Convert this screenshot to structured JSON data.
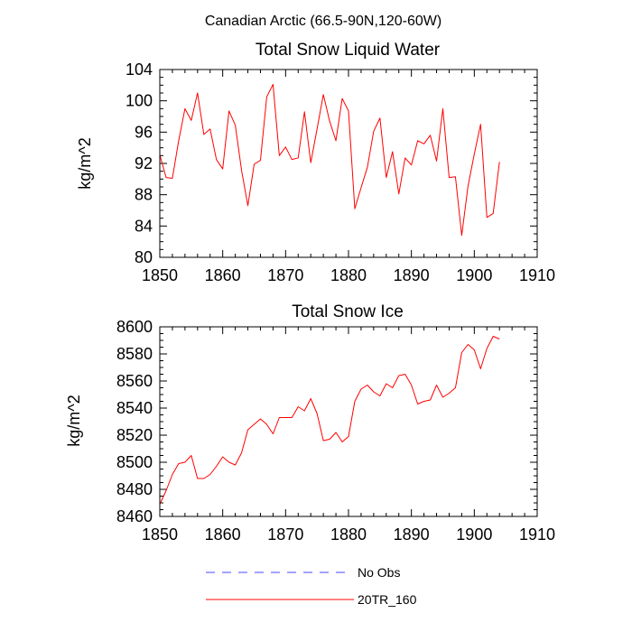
{
  "figure_title": "Canadian Arctic (66.5-90N,120-60W)",
  "legend": {
    "items": [
      {
        "label": "No Obs",
        "color": "#4a4aff",
        "dash": true
      },
      {
        "label": "20TR_160",
        "color": "#ff0000",
        "dash": false
      }
    ]
  },
  "chart_data": [
    {
      "type": "line",
      "title": "Total Snow Liquid Water",
      "xlabel": "",
      "ylabel": "kg/m^2",
      "xlim": [
        1850,
        1910
      ],
      "ylim": [
        80,
        104
      ],
      "x_ticks": [
        1850,
        1860,
        1870,
        1880,
        1890,
        1900,
        1910
      ],
      "y_ticks": [
        80,
        84,
        88,
        92,
        96,
        100,
        104
      ],
      "x_tick_labels": [
        "1850",
        "1860",
        "1870",
        "1880",
        "1890",
        "1900",
        "1910"
      ],
      "y_tick_labels": [
        "80",
        "84",
        "88",
        "92",
        "96",
        "100",
        "104"
      ],
      "legend": "bottom",
      "grid": false,
      "series": [
        {
          "name": "20TR_160",
          "color": "#ff0000",
          "x": [
            1850,
            1851,
            1852,
            1853,
            1854,
            1855,
            1856,
            1857,
            1858,
            1859,
            1860,
            1861,
            1862,
            1863,
            1864,
            1865,
            1866,
            1867,
            1868,
            1869,
            1870,
            1871,
            1872,
            1873,
            1874,
            1875,
            1876,
            1877,
            1878,
            1879,
            1880,
            1881,
            1882,
            1883,
            1884,
            1885,
            1886,
            1887,
            1888,
            1889,
            1890,
            1891,
            1892,
            1893,
            1894,
            1895,
            1896,
            1897,
            1898,
            1899,
            1900,
            1901,
            1902,
            1903,
            1904
          ],
          "values": [
            93.1,
            90.2,
            90.1,
            94.9,
            99.0,
            97.5,
            101.0,
            95.7,
            96.4,
            92.5,
            91.3,
            98.7,
            96.9,
            91.1,
            86.6,
            91.9,
            92.4,
            100.5,
            102.1,
            93.0,
            94.1,
            92.5,
            92.7,
            98.6,
            92.1,
            96.4,
            100.8,
            97.4,
            94.9,
            100.3,
            98.7,
            86.2,
            88.9,
            91.5,
            96.1,
            97.8,
            90.2,
            93.5,
            88.1,
            92.7,
            91.8,
            94.9,
            94.5,
            95.6,
            92.3,
            99.0,
            90.2,
            90.3,
            82.8,
            89.1,
            93.2,
            97.0,
            85.1,
            85.6,
            92.2
          ]
        }
      ]
    },
    {
      "type": "line",
      "title": "Total Snow Ice",
      "xlabel": "",
      "ylabel": "kg/m^2",
      "xlim": [
        1850,
        1910
      ],
      "ylim": [
        8460,
        8600
      ],
      "x_ticks": [
        1850,
        1860,
        1870,
        1880,
        1890,
        1900,
        1910
      ],
      "y_ticks": [
        8460,
        8480,
        8500,
        8520,
        8540,
        8560,
        8580,
        8600
      ],
      "x_tick_labels": [
        "1850",
        "1860",
        "1870",
        "1880",
        "1890",
        "1900",
        "1910"
      ],
      "y_tick_labels": [
        "8460",
        "8480",
        "8500",
        "8520",
        "8540",
        "8560",
        "8580",
        "8600"
      ],
      "legend": "bottom",
      "grid": false,
      "series": [
        {
          "name": "20TR_160",
          "color": "#ff0000",
          "x": [
            1850,
            1851,
            1852,
            1853,
            1854,
            1855,
            1856,
            1857,
            1858,
            1859,
            1860,
            1861,
            1862,
            1863,
            1864,
            1865,
            1866,
            1867,
            1868,
            1869,
            1870,
            1871,
            1872,
            1873,
            1874,
            1875,
            1876,
            1877,
            1878,
            1879,
            1880,
            1881,
            1882,
            1883,
            1884,
            1885,
            1886,
            1887,
            1888,
            1889,
            1890,
            1891,
            1892,
            1893,
            1894,
            1895,
            1896,
            1897,
            1898,
            1899,
            1900,
            1901,
            1902,
            1903,
            1904
          ],
          "values": [
            8469,
            8479,
            8491,
            8499,
            8500,
            8505,
            8488,
            8488,
            8491,
            8497,
            8504,
            8500,
            8498,
            8507,
            8524,
            8528,
            8532,
            8528,
            8521,
            8533,
            8533,
            8533,
            8541,
            8538,
            8547,
            8536,
            8516,
            8517,
            8522,
            8515,
            8519,
            8545,
            8554,
            8557,
            8552,
            8549,
            8558,
            8555,
            8564,
            8565,
            8557,
            8543,
            8545,
            8546,
            8557,
            8548,
            8551,
            8555,
            8581,
            8587,
            8583,
            8569,
            8584,
            8593,
            8591
          ]
        }
      ]
    }
  ]
}
